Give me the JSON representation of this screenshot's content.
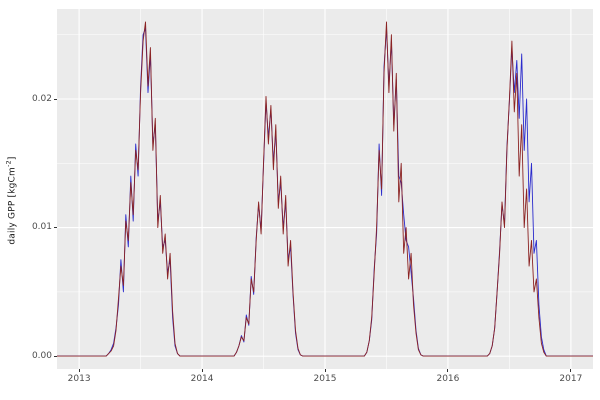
{
  "figure": {
    "ylabel_pre": "daily GPP [kgCm",
    "ylabel_sup": "-2",
    "ylabel_post": "]",
    "background": "#FFFFFF",
    "panel_background": "#EBEBEB",
    "grid_color": "#FFFFFF",
    "tick_label_color": "#4D4D4D",
    "axis_title_color": "#1A1A1A"
  },
  "chart_data": {
    "type": "line",
    "title": "",
    "xlabel": "",
    "ylabel": "daily GPP [kgCm^-2]",
    "grid": true,
    "legend": "none",
    "xlim": [
      2012.82,
      2017.18
    ],
    "ylim": [
      -0.001,
      0.027
    ],
    "x_ticks": [
      2013,
      2014,
      2015,
      2016,
      2017
    ],
    "x_tick_labels": [
      "2013",
      "2014",
      "2015",
      "2016",
      "2017"
    ],
    "x_minor_ticks": [
      2013.5,
      2014.5,
      2015.5,
      2016.5
    ],
    "y_ticks": [
      0,
      0.01,
      0.02
    ],
    "y_tick_labels": [
      "0.00",
      "0.01",
      "0.02"
    ],
    "y_minor_ticks": [
      0.005,
      0.015,
      0.025
    ],
    "x_start": 2012.82,
    "x_step": 0.02,
    "series": [
      {
        "name": "blue",
        "color": "#2B2BCC",
        "values": [
          0,
          0,
          0,
          0,
          0,
          0,
          0,
          0,
          0,
          0,
          0,
          0,
          0,
          0,
          0,
          0,
          0,
          0,
          0,
          0,
          0,
          0.0002,
          0.0005,
          0.001,
          0.0022,
          0.004,
          0.0075,
          0.005,
          0.011,
          0.0085,
          0.014,
          0.0105,
          0.0165,
          0.014,
          0.021,
          0.025,
          0.0255,
          0.0205,
          0.0235,
          0.0165,
          0.018,
          0.0105,
          0.012,
          0.0085,
          0.009,
          0.0065,
          0.0075,
          0.003,
          0.0008,
          0.0002,
          0,
          0,
          0,
          0,
          0,
          0,
          0,
          0,
          0,
          0,
          0,
          0,
          0,
          0,
          0,
          0,
          0,
          0,
          0,
          0,
          0,
          0,
          0,
          0.0003,
          0.0008,
          0.0016,
          0.0011,
          0.0032,
          0.0024,
          0.0062,
          0.0048,
          0.0092,
          0.0118,
          0.0098,
          0.0148,
          0.0198,
          0.017,
          0.0192,
          0.015,
          0.0175,
          0.012,
          0.0135,
          0.01,
          0.012,
          0.0075,
          0.0085,
          0.0048,
          0.0018,
          0.0005,
          0.0001,
          0,
          0,
          0,
          0,
          0,
          0,
          0,
          0,
          0,
          0,
          0,
          0,
          0,
          0,
          0,
          0,
          0,
          0,
          0,
          0,
          0,
          0,
          0,
          0,
          0,
          0,
          0.0003,
          0.0012,
          0.0028,
          0.0068,
          0.0095,
          0.0165,
          0.0125,
          0.0225,
          0.0255,
          0.021,
          0.0245,
          0.018,
          0.0215,
          0.014,
          0.0135,
          0.011,
          0.009,
          0.0085,
          0.0065,
          0.0045,
          0.002,
          0.0006,
          0.0001,
          0,
          0,
          0,
          0,
          0,
          0,
          0,
          0,
          0,
          0,
          0,
          0,
          0,
          0,
          0,
          0,
          0,
          0,
          0,
          0,
          0,
          0,
          0,
          0,
          0,
          0,
          0,
          0.0002,
          0.0008,
          0.0022,
          0.005,
          0.0082,
          0.0118,
          0.0102,
          0.0162,
          0.0198,
          0.024,
          0.0205,
          0.023,
          0.0185,
          0.0235,
          0.016,
          0.02,
          0.012,
          0.015,
          0.008,
          0.009,
          0.004,
          0.0015,
          0.0005,
          0,
          0,
          0,
          0,
          0,
          0,
          0,
          0,
          0,
          0,
          0,
          0,
          0,
          0,
          0,
          0,
          0,
          0,
          0,
          0
        ]
      },
      {
        "name": "darkred",
        "color": "#8B2323",
        "values": [
          0,
          0,
          0,
          0,
          0,
          0,
          0,
          0,
          0,
          0,
          0,
          0,
          0,
          0,
          0,
          0,
          0,
          0,
          0,
          0,
          0,
          0.0002,
          0.0004,
          0.0008,
          0.002,
          0.0045,
          0.007,
          0.0055,
          0.0105,
          0.009,
          0.0135,
          0.011,
          0.016,
          0.0145,
          0.0205,
          0.0245,
          0.026,
          0.021,
          0.024,
          0.016,
          0.0185,
          0.01,
          0.0125,
          0.008,
          0.0095,
          0.006,
          0.008,
          0.0035,
          0.001,
          0.0002,
          0,
          0,
          0,
          0,
          0,
          0,
          0,
          0,
          0,
          0,
          0,
          0,
          0,
          0,
          0,
          0,
          0,
          0,
          0,
          0,
          0,
          0,
          0,
          0.0003,
          0.0008,
          0.0015,
          0.0012,
          0.003,
          0.0025,
          0.006,
          0.005,
          0.009,
          0.012,
          0.0095,
          0.015,
          0.0202,
          0.0165,
          0.0195,
          0.0145,
          0.018,
          0.0115,
          0.014,
          0.0095,
          0.0125,
          0.007,
          0.009,
          0.005,
          0.002,
          0.0006,
          0.0001,
          0,
          0,
          0,
          0,
          0,
          0,
          0,
          0,
          0,
          0,
          0,
          0,
          0,
          0,
          0,
          0,
          0,
          0,
          0,
          0,
          0,
          0,
          0,
          0,
          0,
          0,
          0.0003,
          0.0012,
          0.003,
          0.0065,
          0.01,
          0.016,
          0.013,
          0.022,
          0.026,
          0.0205,
          0.025,
          0.0175,
          0.022,
          0.012,
          0.015,
          0.008,
          0.01,
          0.006,
          0.008,
          0.004,
          0.0018,
          0.0005,
          0.0001,
          0,
          0,
          0,
          0,
          0,
          0,
          0,
          0,
          0,
          0,
          0,
          0,
          0,
          0,
          0,
          0,
          0,
          0,
          0,
          0,
          0,
          0,
          0,
          0,
          0,
          0,
          0,
          0.0002,
          0.0008,
          0.0022,
          0.005,
          0.008,
          0.012,
          0.01,
          0.016,
          0.02,
          0.0245,
          0.019,
          0.022,
          0.014,
          0.018,
          0.01,
          0.013,
          0.007,
          0.009,
          0.005,
          0.006,
          0.003,
          0.001,
          0.0003,
          0,
          0,
          0,
          0,
          0,
          0,
          0,
          0,
          0,
          0,
          0,
          0,
          0,
          0,
          0,
          0,
          0,
          0,
          0,
          0
        ]
      }
    ]
  }
}
